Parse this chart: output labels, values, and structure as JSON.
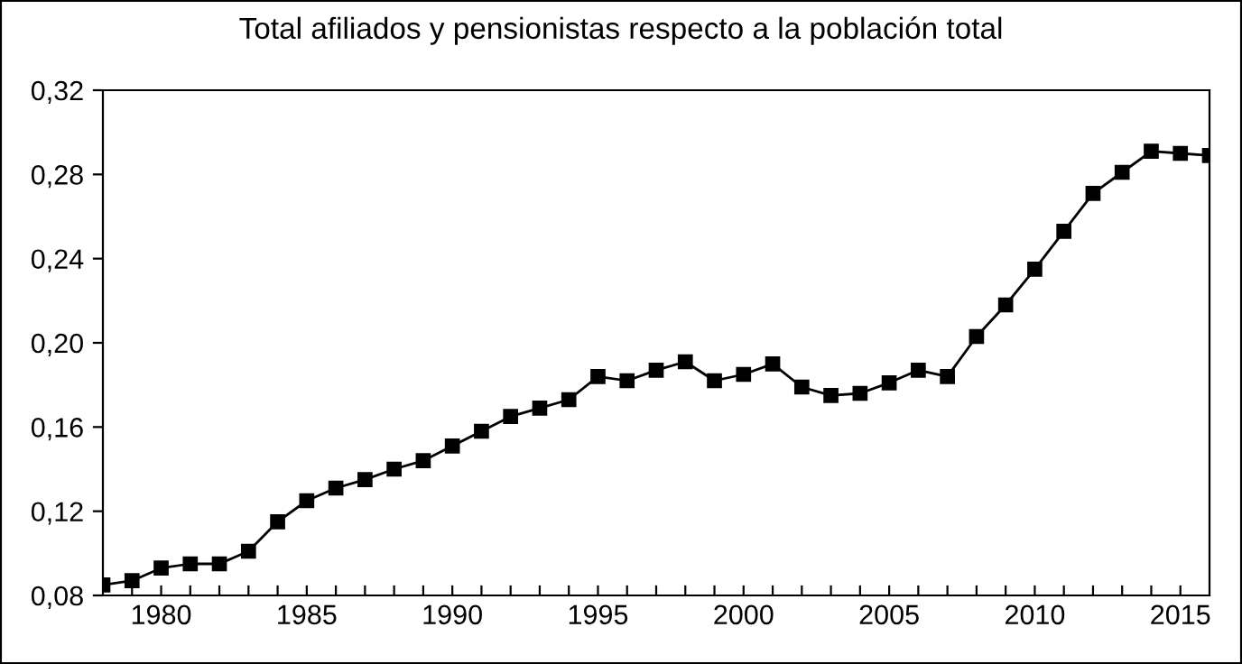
{
  "chart_data": {
    "type": "line",
    "title": "Total afiliados y pensionistas respecto a la población total",
    "x": [
      1978,
      1979,
      1980,
      1981,
      1982,
      1983,
      1984,
      1985,
      1986,
      1987,
      1988,
      1989,
      1990,
      1991,
      1992,
      1993,
      1994,
      1995,
      1996,
      1997,
      1998,
      1999,
      2000,
      2001,
      2002,
      2003,
      2004,
      2005,
      2006,
      2007,
      2008,
      2009,
      2010,
      2011,
      2012,
      2013,
      2014,
      2015,
      2016
    ],
    "series": [
      {
        "color": "#000000",
        "values": [
          0.085,
          0.087,
          0.093,
          0.095,
          0.095,
          0.101,
          0.115,
          0.125,
          0.131,
          0.135,
          0.14,
          0.144,
          0.151,
          0.158,
          0.165,
          0.169,
          0.173,
          0.184,
          0.182,
          0.187,
          0.191,
          0.182,
          0.185,
          0.19,
          0.179,
          0.175,
          0.176,
          0.181,
          0.187,
          0.184,
          0.203,
          0.218,
          0.235,
          0.253,
          0.271,
          0.281,
          0.291,
          0.29,
          0.289
        ]
      }
    ],
    "xlim": [
      1978,
      2016
    ],
    "xticks": [
      {
        "value": 1979,
        "label": null
      },
      {
        "value": 1980,
        "label": "1980"
      },
      {
        "value": 1981,
        "label": null
      },
      {
        "value": 1982,
        "label": null
      },
      {
        "value": 1983,
        "label": null
      },
      {
        "value": 1984,
        "label": null
      },
      {
        "value": 1985,
        "label": "1985"
      },
      {
        "value": 1986,
        "label": null
      },
      {
        "value": 1987,
        "label": null
      },
      {
        "value": 1988,
        "label": null
      },
      {
        "value": 1989,
        "label": null
      },
      {
        "value": 1990,
        "label": "1990"
      },
      {
        "value": 1991,
        "label": null
      },
      {
        "value": 1992,
        "label": null
      },
      {
        "value": 1993,
        "label": null
      },
      {
        "value": 1994,
        "label": null
      },
      {
        "value": 1995,
        "label": "1995"
      },
      {
        "value": 1996,
        "label": null
      },
      {
        "value": 1997,
        "label": null
      },
      {
        "value": 1998,
        "label": null
      },
      {
        "value": 1999,
        "label": null
      },
      {
        "value": 2000,
        "label": "2000"
      },
      {
        "value": 2001,
        "label": null
      },
      {
        "value": 2002,
        "label": null
      },
      {
        "value": 2003,
        "label": null
      },
      {
        "value": 2004,
        "label": null
      },
      {
        "value": 2005,
        "label": "2005"
      },
      {
        "value": 2006,
        "label": null
      },
      {
        "value": 2007,
        "label": null
      },
      {
        "value": 2008,
        "label": null
      },
      {
        "value": 2009,
        "label": null
      },
      {
        "value": 2010,
        "label": "2010"
      },
      {
        "value": 2011,
        "label": null
      },
      {
        "value": 2012,
        "label": null
      },
      {
        "value": 2013,
        "label": null
      },
      {
        "value": 2014,
        "label": null
      },
      {
        "value": 2015,
        "label": "2015"
      }
    ],
    "ylim": [
      0.08,
      0.32
    ],
    "yticks": [
      {
        "value": 0.08,
        "label": "0,08"
      },
      {
        "value": 0.12,
        "label": "0,12"
      },
      {
        "value": 0.16,
        "label": "0,16"
      },
      {
        "value": 0.2,
        "label": "0,20"
      },
      {
        "value": 0.24,
        "label": "0,24"
      },
      {
        "value": 0.28,
        "label": "0,28"
      },
      {
        "value": 0.32,
        "label": "0,32"
      }
    ],
    "grid": false,
    "legend": false,
    "marker": "square",
    "line_style": "solid"
  }
}
